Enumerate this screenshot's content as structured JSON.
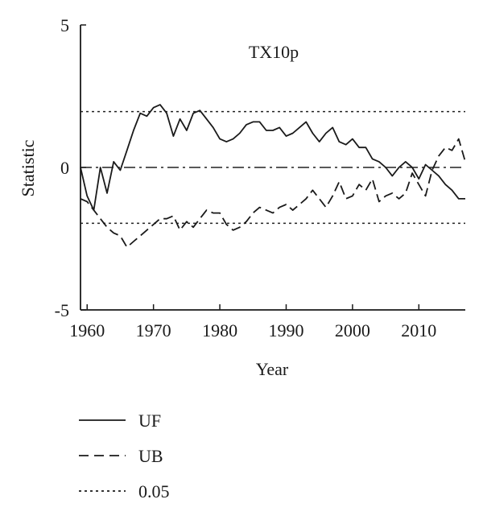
{
  "chart_data": {
    "type": "line",
    "annotation": "TX10p",
    "xlabel": "Year",
    "ylabel": "Statistic",
    "xlim": [
      1959,
      2017
    ],
    "ylim": [
      -5,
      5
    ],
    "x_ticks": [
      1960,
      1970,
      1980,
      1990,
      2000,
      2010
    ],
    "y_ticks": [
      5,
      0,
      -5
    ],
    "y_tick_labels": [
      "5",
      "0",
      "-5"
    ],
    "reference_lines": {
      "zero": 0,
      "significance": [
        1.96,
        -1.96
      ]
    },
    "legend": [
      {
        "label": "UF",
        "style": "solid"
      },
      {
        "label": "UB",
        "style": "dashed"
      },
      {
        "label": "0.05",
        "style": "dotted"
      }
    ],
    "legend_position": "bottom-left, outside plot",
    "series": [
      {
        "name": "UF",
        "style": "solid",
        "x": [
          1959,
          1960,
          1961,
          1962,
          1963,
          1964,
          1965,
          1966,
          1967,
          1968,
          1969,
          1970,
          1971,
          1972,
          1973,
          1974,
          1975,
          1976,
          1977,
          1978,
          1979,
          1980,
          1981,
          1982,
          1983,
          1984,
          1985,
          1986,
          1987,
          1988,
          1989,
          1990,
          1991,
          1992,
          1993,
          1994,
          1995,
          1996,
          1997,
          1998,
          1999,
          2000,
          2001,
          2002,
          2003,
          2004,
          2005,
          2006,
          2007,
          2008,
          2009,
          2010,
          2011,
          2012,
          2013,
          2014,
          2015,
          2016,
          2017
        ],
        "y": [
          0,
          -1.0,
          -1.5,
          0,
          -0.9,
          0.2,
          -0.1,
          0.6,
          1.3,
          1.9,
          1.8,
          2.1,
          2.2,
          1.9,
          1.1,
          1.7,
          1.3,
          1.9,
          2.0,
          1.7,
          1.4,
          1.0,
          0.9,
          1.0,
          1.2,
          1.5,
          1.6,
          1.6,
          1.3,
          1.3,
          1.4,
          1.1,
          1.2,
          1.4,
          1.6,
          1.2,
          0.9,
          1.2,
          1.4,
          0.9,
          0.8,
          1.0,
          0.7,
          0.7,
          0.3,
          0.2,
          0.0,
          -0.3,
          0.0,
          0.2,
          0.0,
          -0.4,
          0.1,
          -0.1,
          -0.3,
          -0.6,
          -0.8,
          -1.1,
          -1.1
        ]
      },
      {
        "name": "UB",
        "style": "dashed",
        "x": [
          1959,
          1960,
          1961,
          1962,
          1963,
          1964,
          1965,
          1966,
          1967,
          1968,
          1969,
          1970,
          1971,
          1972,
          1973,
          1974,
          1975,
          1976,
          1977,
          1978,
          1979,
          1980,
          1981,
          1982,
          1983,
          1984,
          1985,
          1986,
          1987,
          1988,
          1989,
          1990,
          1991,
          1992,
          1993,
          1994,
          1995,
          1996,
          1997,
          1998,
          1999,
          2000,
          2001,
          2002,
          2003,
          2004,
          2005,
          2006,
          2007,
          2008,
          2009,
          2010,
          2011,
          2012,
          2013,
          2014,
          2015,
          2016,
          2017
        ],
        "y": [
          -1.1,
          -1.2,
          -1.5,
          -1.8,
          -2.1,
          -2.3,
          -2.4,
          -2.8,
          -2.6,
          -2.4,
          -2.2,
          -2.0,
          -1.8,
          -1.8,
          -1.7,
          -2.2,
          -1.9,
          -2.1,
          -1.8,
          -1.5,
          -1.6,
          -1.6,
          -2.0,
          -2.2,
          -2.1,
          -1.9,
          -1.6,
          -1.4,
          -1.5,
          -1.6,
          -1.4,
          -1.3,
          -1.5,
          -1.3,
          -1.1,
          -0.8,
          -1.1,
          -1.4,
          -1.0,
          -0.5,
          -1.1,
          -1.0,
          -0.6,
          -0.8,
          -0.4,
          -1.2,
          -1.0,
          -0.9,
          -1.1,
          -0.9,
          -0.2,
          -0.6,
          -1.0,
          -0.1,
          0.4,
          0.7,
          0.6,
          1.0,
          0.2
        ]
      }
    ]
  }
}
